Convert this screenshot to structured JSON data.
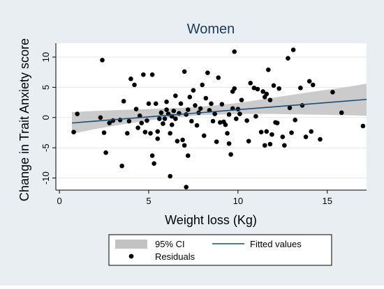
{
  "chart_data": {
    "type": "scatter",
    "title": "Women",
    "xlabel": "Weight loss (Kg)",
    "ylabel": "Change in Trait Anxiety score",
    "xlim": [
      -0.2,
      17.2
    ],
    "ylim": [
      -12,
      12.3
    ],
    "xticks": [
      0,
      5,
      10,
      15
    ],
    "yticks": [
      -10,
      -5,
      0,
      5,
      10
    ],
    "grid": "horizontal",
    "legend_position": "bottom",
    "colors": {
      "title": "#1a3a5c",
      "points": "#000000",
      "fitted_line": "#1a4f7a",
      "ci_band": "#c2c2c2",
      "plot_background": "#ffffff",
      "frame_background": "#e9eef2",
      "gridline": "#e3e8ec"
    },
    "legend": [
      {
        "label": "95% CI",
        "symbol": "ci-swatch"
      },
      {
        "label": "Fitted values",
        "symbol": "line"
      },
      {
        "label": "Residuals",
        "symbol": "dot"
      }
    ],
    "fitted": {
      "x": [
        0.7,
        17.2
      ],
      "y": [
        -0.9,
        3.0
      ]
    },
    "ci_band": {
      "x": [
        0.7,
        2,
        4,
        6,
        8,
        10,
        12,
        14,
        16,
        17.2
      ],
      "lower": [
        -2.7,
        -1.9,
        -0.9,
        -0.1,
        0.4,
        0.6,
        0.6,
        0.5,
        0.4,
        0.3
      ],
      "upper": [
        0.9,
        1.1,
        1.3,
        1.5,
        1.8,
        2.4,
        3.3,
        4.2,
        5.0,
        5.6
      ]
    },
    "series": [
      {
        "name": "Residuals",
        "points": [
          [
            0.8,
            -2.4
          ],
          [
            1.0,
            0.6
          ],
          [
            2.3,
            0.0
          ],
          [
            2.4,
            9.5
          ],
          [
            2.5,
            -2.5
          ],
          [
            2.6,
            -5.8
          ],
          [
            2.8,
            -0.9
          ],
          [
            3.0,
            -0.5
          ],
          [
            3.4,
            -0.4
          ],
          [
            3.5,
            -8.0
          ],
          [
            3.6,
            2.7
          ],
          [
            3.8,
            -2.6
          ],
          [
            3.9,
            -0.6
          ],
          [
            4.0,
            6.4
          ],
          [
            4.2,
            5.4
          ],
          [
            4.3,
            1.4
          ],
          [
            4.4,
            -1.7
          ],
          [
            4.5,
            0.3
          ],
          [
            4.6,
            -0.9
          ],
          [
            4.7,
            7.1
          ],
          [
            4.8,
            -2.4
          ],
          [
            4.9,
            -0.5
          ],
          [
            5.0,
            2.3
          ],
          [
            5.1,
            -2.6
          ],
          [
            5.2,
            7.1
          ],
          [
            5.2,
            -6.3
          ],
          [
            5.3,
            -7.6
          ],
          [
            5.4,
            2.3
          ],
          [
            5.5,
            -2.3
          ],
          [
            5.5,
            -3.5
          ],
          [
            5.6,
            -0.2
          ],
          [
            5.7,
            0.8
          ],
          [
            5.8,
            -1.0
          ],
          [
            5.9,
            -0.2
          ],
          [
            6.0,
            2.6
          ],
          [
            6.0,
            1.3
          ],
          [
            6.1,
            0.6
          ],
          [
            6.2,
            -2.6
          ],
          [
            6.2,
            -9.7
          ],
          [
            6.3,
            -1.2
          ],
          [
            6.3,
            0.2
          ],
          [
            6.4,
            1.1
          ],
          [
            6.5,
            3.6
          ],
          [
            6.5,
            -0.2
          ],
          [
            6.6,
            -3.9
          ],
          [
            6.7,
            0.7
          ],
          [
            6.8,
            2.3
          ],
          [
            6.9,
            -3.7
          ],
          [
            7.0,
            7.6
          ],
          [
            7.0,
            -4.6
          ],
          [
            7.1,
            0.5
          ],
          [
            7.1,
            -11.5
          ],
          [
            7.2,
            1.3
          ],
          [
            7.2,
            -6.3
          ],
          [
            7.3,
            3.4
          ],
          [
            7.4,
            -0.6
          ],
          [
            7.5,
            4.5
          ],
          [
            7.6,
            2.0
          ],
          [
            7.7,
            -1.3
          ],
          [
            7.8,
            0.8
          ],
          [
            7.9,
            1.5
          ],
          [
            8.0,
            5.4
          ],
          [
            8.1,
            -3.0
          ],
          [
            8.2,
            3.2
          ],
          [
            8.3,
            7.4
          ],
          [
            8.4,
            1.2
          ],
          [
            8.5,
            2.3
          ],
          [
            8.6,
            -0.6
          ],
          [
            8.7,
            0.6
          ],
          [
            8.8,
            -4.0
          ],
          [
            8.9,
            6.6
          ],
          [
            9.0,
            -0.8
          ],
          [
            9.1,
            2.2
          ],
          [
            9.2,
            -0.7
          ],
          [
            9.3,
            -1.2
          ],
          [
            9.4,
            -2.6
          ],
          [
            9.5,
            0.5
          ],
          [
            9.5,
            -4.3
          ],
          [
            9.6,
            -6.1
          ],
          [
            9.7,
            4.3
          ],
          [
            9.7,
            1.5
          ],
          [
            9.8,
            10.9
          ],
          [
            9.8,
            4.8
          ],
          [
            9.9,
            -0.2
          ],
          [
            10.0,
            1.4
          ],
          [
            10.1,
            0.6
          ],
          [
            10.2,
            2.9
          ],
          [
            10.5,
            -0.5
          ],
          [
            10.6,
            -3.9
          ],
          [
            10.7,
            5.7
          ],
          [
            10.9,
            4.9
          ],
          [
            11.0,
            0.2
          ],
          [
            11.1,
            4.7
          ],
          [
            11.3,
            -2.4
          ],
          [
            11.4,
            4.3
          ],
          [
            11.5,
            -4.6
          ],
          [
            11.5,
            3.4
          ],
          [
            11.6,
            -2.3
          ],
          [
            11.6,
            3.9
          ],
          [
            11.7,
            7.9
          ],
          [
            11.8,
            -4.4
          ],
          [
            11.8,
            2.9
          ],
          [
            11.9,
            -2.8
          ],
          [
            12.0,
            5.3
          ],
          [
            12.1,
            -0.8
          ],
          [
            12.2,
            -0.9
          ],
          [
            12.3,
            4.8
          ],
          [
            12.5,
            -3.2
          ],
          [
            12.6,
            -4.6
          ],
          [
            12.8,
            9.8
          ],
          [
            12.9,
            1.6
          ],
          [
            13.0,
            -2.5
          ],
          [
            13.1,
            11.2
          ],
          [
            13.2,
            -0.4
          ],
          [
            13.5,
            4.9
          ],
          [
            13.6,
            2.0
          ],
          [
            13.8,
            -3.2
          ],
          [
            14.0,
            6.0
          ],
          [
            14.1,
            -2.3
          ],
          [
            14.2,
            5.4
          ],
          [
            14.6,
            -3.6
          ],
          [
            15.3,
            4.2
          ],
          [
            15.8,
            0.8
          ],
          [
            17.0,
            -1.4
          ]
        ]
      }
    ]
  }
}
